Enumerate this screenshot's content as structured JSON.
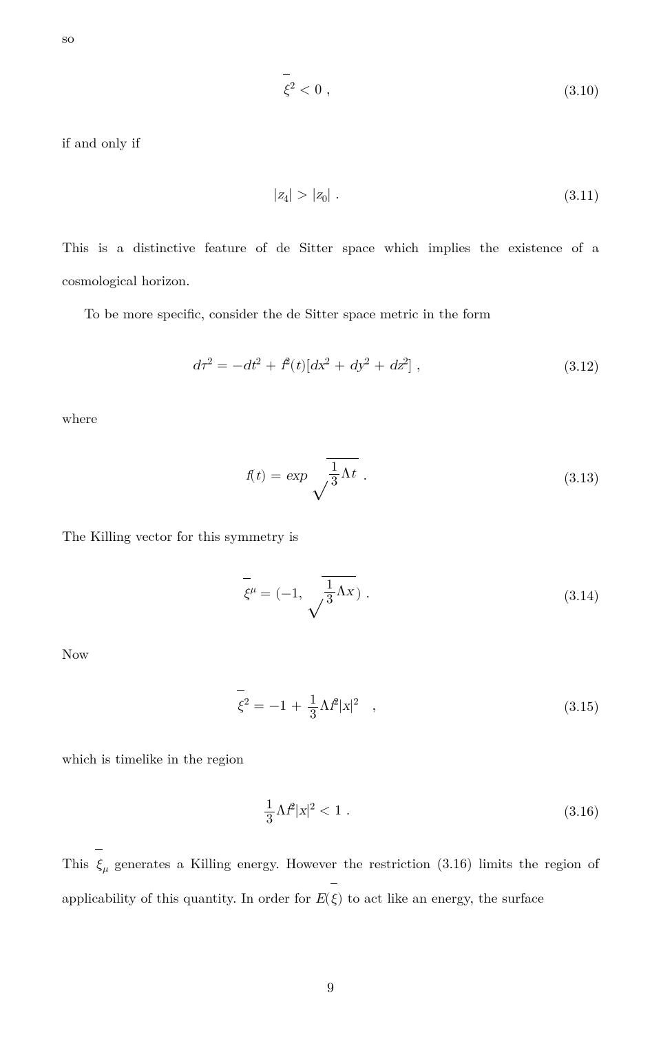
{
  "lines": {
    "so": "so",
    "ifonlyif": "if and only if",
    "p1": "This is a distinctive feature of de Sitter space which implies the existence of a cosmological horizon.",
    "p2": "To be more specific, consider the de Sitter space metric in the form",
    "where": "where",
    "p3": "The Killing vector for this symmetry is",
    "now": "Now",
    "p4": "which is timelike in the region",
    "p5a": "This ",
    "p5b": " generates a Killing energy. However the restriction (3.16) limits the region of applicability of this quantity. In order for ",
    "p5c": " to act like an energy, the surface"
  },
  "eqnums": {
    "e10": "(3.10)",
    "e11": "(3.11)",
    "e12": "(3.12)",
    "e13": "(3.13)",
    "e14": "(3.14)",
    "e15": "(3.15)",
    "e16": "(3.16)"
  },
  "math": {
    "frac_num": "1",
    "frac_den": "3"
  },
  "pagenum": "9"
}
